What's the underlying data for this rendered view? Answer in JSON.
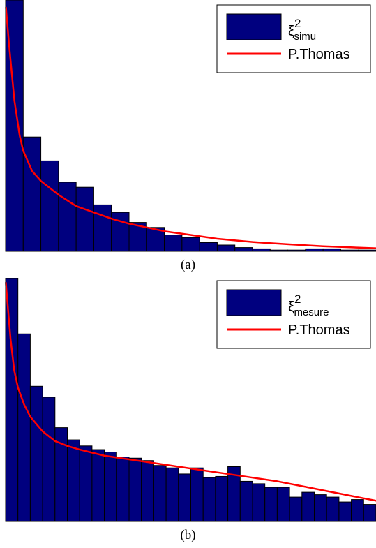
{
  "colors": {
    "bar_fill": "#00007f",
    "bar_edge": "#000000",
    "curve": "#ff0000",
    "axis": "#000000"
  },
  "chart_data": [
    {
      "type": "bar",
      "caption": "(a)",
      "legend": {
        "placement": "top-right",
        "bar_symbol": "ξ",
        "bar_sup": "2",
        "bar_sub": "simu",
        "line_label": "P.Thomas"
      },
      "ylim": [
        0,
        100
      ],
      "bins": 21,
      "values": [
        100,
        45.5,
        36,
        27.5,
        25.5,
        18.5,
        15.5,
        11.5,
        9.5,
        6.5,
        5.5,
        3.5,
        2.5,
        1.5,
        1,
        0.5,
        0.5,
        1,
        1,
        0.5,
        0.5
      ],
      "curve": {
        "x": [
          0.02,
          0.2,
          0.5,
          0.8,
          1.0,
          1.5,
          2.0,
          3.0,
          4.0,
          5.0,
          6.0,
          7.0,
          8.0,
          9.0,
          10.0,
          12.0,
          14.0,
          16.0,
          18.0,
          21.0
        ],
        "y": [
          97,
          82,
          60,
          46,
          40,
          32,
          28,
          22.5,
          18,
          15.5,
          13,
          11,
          9.5,
          8,
          7,
          5,
          3.7,
          2.8,
          2,
          1.2
        ]
      }
    },
    {
      "type": "bar",
      "caption": "(b)",
      "legend": {
        "placement": "top-right",
        "bar_symbol": "ξ",
        "bar_sup": "2",
        "bar_sub": "mesure",
        "line_label": "P.Thomas"
      },
      "ylim": [
        0,
        100
      ],
      "bins": 30,
      "values": [
        100,
        77,
        55.5,
        51,
        38.5,
        33.5,
        31,
        29.5,
        28.5,
        26.5,
        26,
        25,
        23,
        22,
        19.5,
        22,
        18,
        18.5,
        22.5,
        16.5,
        15.5,
        14,
        14,
        10,
        12,
        11,
        10,
        8,
        9,
        7
      ],
      "curve": {
        "x": [
          0.02,
          0.2,
          0.4,
          0.7,
          1.0,
          1.5,
          2.0,
          3.0,
          4.0,
          5.0,
          6.0,
          8.0,
          10.0,
          12.0,
          14.0,
          16.0,
          18.0,
          20.0,
          22.0,
          24.0,
          26.0,
          28.0,
          30.0
        ],
        "y": [
          98,
          87,
          75,
          62,
          55,
          48,
          43,
          37,
          33,
          31,
          29.5,
          27,
          25.5,
          24,
          22.5,
          21,
          19.5,
          18,
          16.5,
          14.5,
          12.5,
          10.5,
          8.5
        ]
      }
    }
  ]
}
